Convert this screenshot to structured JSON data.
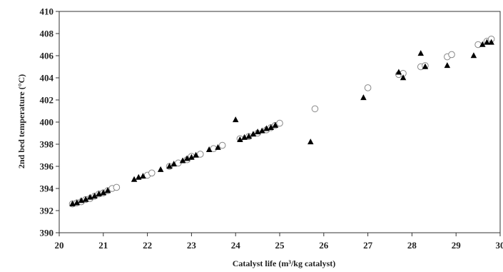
{
  "chart_data": {
    "type": "scatter",
    "title": "",
    "xlabel": "Catalyst life (m³/kg catalyst)",
    "ylabel": "2nd bed temperature (°C)",
    "xlim": [
      20,
      30
    ],
    "ylim": [
      390,
      410
    ],
    "x_ticks": [
      20,
      21,
      22,
      23,
      24,
      25,
      26,
      27,
      28,
      29,
      30
    ],
    "y_ticks": [
      390,
      392,
      394,
      396,
      398,
      400,
      402,
      404,
      406,
      408,
      410
    ],
    "grid": false,
    "legend": "none",
    "series": [
      {
        "marker": "filled-triangle",
        "color": "#000000",
        "points": [
          [
            20.3,
            392.6
          ],
          [
            20.4,
            392.7
          ],
          [
            20.5,
            392.9
          ],
          [
            20.6,
            393.0
          ],
          [
            20.7,
            393.2
          ],
          [
            20.8,
            393.3
          ],
          [
            20.9,
            393.5
          ],
          [
            21.0,
            393.6
          ],
          [
            21.1,
            393.8
          ],
          [
            21.7,
            394.8
          ],
          [
            21.8,
            395.0
          ],
          [
            21.9,
            395.1
          ],
          [
            22.3,
            395.7
          ],
          [
            22.5,
            396.0
          ],
          [
            22.6,
            396.2
          ],
          [
            22.8,
            396.5
          ],
          [
            22.9,
            396.7
          ],
          [
            23.0,
            396.8
          ],
          [
            23.1,
            397.0
          ],
          [
            23.4,
            397.5
          ],
          [
            23.6,
            397.7
          ],
          [
            24.0,
            400.2
          ],
          [
            24.1,
            398.4
          ],
          [
            24.2,
            398.6
          ],
          [
            24.3,
            398.7
          ],
          [
            24.4,
            398.9
          ],
          [
            24.5,
            399.1
          ],
          [
            24.6,
            399.2
          ],
          [
            24.7,
            399.4
          ],
          [
            24.8,
            399.5
          ],
          [
            24.9,
            399.7
          ],
          [
            25.7,
            398.2
          ],
          [
            26.9,
            402.2
          ],
          [
            27.7,
            404.5
          ],
          [
            27.8,
            404.0
          ],
          [
            28.2,
            406.2
          ],
          [
            28.3,
            405.0
          ],
          [
            28.8,
            405.1
          ],
          [
            29.4,
            406.0
          ],
          [
            29.6,
            407.0
          ],
          [
            29.7,
            407.2
          ],
          [
            29.8,
            407.2
          ]
        ]
      },
      {
        "marker": "hollow-circle",
        "color": "#888888",
        "points": [
          [
            20.3,
            392.6
          ],
          [
            20.4,
            392.7
          ],
          [
            20.5,
            392.8
          ],
          [
            20.6,
            393.0
          ],
          [
            20.7,
            393.1
          ],
          [
            20.8,
            393.3
          ],
          [
            20.9,
            393.5
          ],
          [
            21.0,
            393.6
          ],
          [
            21.1,
            393.8
          ],
          [
            21.2,
            394.0
          ],
          [
            21.3,
            394.1
          ],
          [
            22.0,
            395.2
          ],
          [
            22.1,
            395.4
          ],
          [
            22.5,
            396.0
          ],
          [
            22.7,
            396.3
          ],
          [
            22.9,
            396.6
          ],
          [
            23.0,
            396.9
          ],
          [
            23.2,
            397.1
          ],
          [
            23.5,
            397.6
          ],
          [
            23.7,
            397.9
          ],
          [
            24.1,
            398.5
          ],
          [
            24.3,
            398.7
          ],
          [
            24.5,
            399.0
          ],
          [
            24.7,
            399.3
          ],
          [
            24.8,
            399.5
          ],
          [
            24.9,
            399.7
          ],
          [
            25.0,
            399.9
          ],
          [
            25.8,
            401.2
          ],
          [
            27.0,
            403.1
          ],
          [
            27.7,
            404.3
          ],
          [
            27.8,
            404.4
          ],
          [
            28.2,
            405.0
          ],
          [
            28.3,
            405.1
          ],
          [
            28.8,
            405.9
          ],
          [
            28.9,
            406.1
          ],
          [
            29.5,
            407.0
          ],
          [
            29.7,
            407.3
          ],
          [
            29.8,
            407.5
          ]
        ]
      }
    ]
  }
}
